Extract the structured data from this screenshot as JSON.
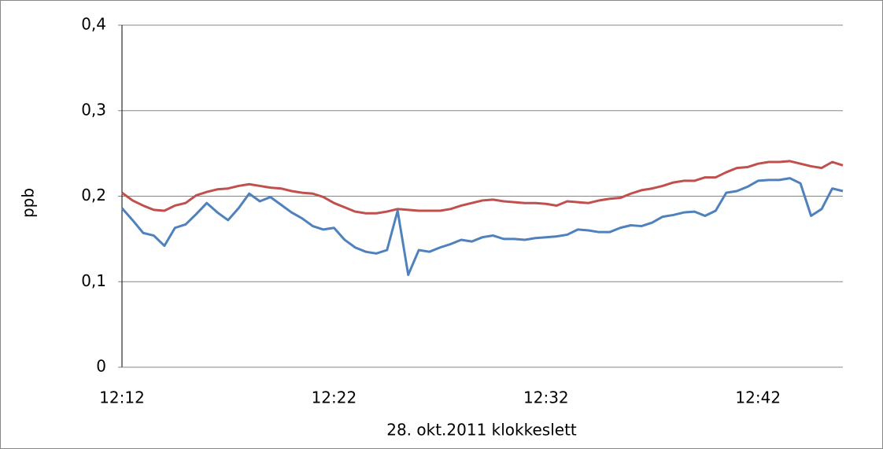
{
  "chart_data": {
    "type": "line",
    "x_label": "28. okt.2011 klokkeslett",
    "y_label": "ppb",
    "categories": [
      "12:12",
      null,
      null,
      null,
      null,
      null,
      null,
      null,
      null,
      null,
      null,
      null,
      null,
      null,
      null,
      null,
      null,
      null,
      null,
      null,
      "12:22",
      null,
      null,
      null,
      null,
      null,
      null,
      null,
      null,
      null,
      null,
      null,
      null,
      null,
      null,
      null,
      null,
      null,
      null,
      null,
      "12:32",
      null,
      null,
      null,
      null,
      null,
      null,
      null,
      null,
      null,
      null,
      null,
      null,
      null,
      null,
      null,
      null,
      null,
      null,
      null,
      "12:42",
      null,
      null,
      null,
      null,
      null,
      null,
      null,
      null
    ],
    "series": [
      {
        "color": "#c0504d",
        "values": [
          0.204,
          0.195,
          0.189,
          0.184,
          0.183,
          0.189,
          0.192,
          0.201,
          0.205,
          0.208,
          0.209,
          0.212,
          0.214,
          0.212,
          0.21,
          0.209,
          0.206,
          0.204,
          0.203,
          0.199,
          0.192,
          0.187,
          0.182,
          0.18,
          0.18,
          0.182,
          0.185,
          0.184,
          0.183,
          0.183,
          0.183,
          0.185,
          0.189,
          0.192,
          0.195,
          0.196,
          0.194,
          0.193,
          0.192,
          0.192,
          0.191,
          0.189,
          0.194,
          0.193,
          0.192,
          0.195,
          0.197,
          0.198,
          0.203,
          0.207,
          0.209,
          0.212,
          0.216,
          0.218,
          0.218,
          0.222,
          0.222,
          0.228,
          0.233,
          0.234,
          0.238,
          0.24,
          0.24,
          0.241,
          0.238,
          0.235,
          0.233,
          0.24,
          0.236
        ]
      },
      {
        "color": "#4f81bd",
        "values": [
          0.186,
          0.172,
          0.157,
          0.154,
          0.142,
          0.163,
          0.167,
          0.179,
          0.192,
          0.181,
          0.172,
          0.186,
          0.203,
          0.194,
          0.199,
          0.19,
          0.181,
          0.174,
          0.165,
          0.161,
          0.163,
          0.149,
          0.14,
          0.135,
          0.133,
          0.137,
          0.183,
          0.108,
          0.137,
          0.135,
          0.14,
          0.144,
          0.149,
          0.147,
          0.152,
          0.154,
          0.15,
          0.15,
          0.149,
          0.151,
          0.152,
          0.153,
          0.155,
          0.161,
          0.16,
          0.158,
          0.158,
          0.163,
          0.166,
          0.165,
          0.169,
          0.176,
          0.178,
          0.181,
          0.182,
          0.177,
          0.183,
          0.204,
          0.206,
          0.211,
          0.218,
          0.219,
          0.219,
          0.221,
          0.215,
          0.177,
          0.185,
          0.209,
          0.206
        ]
      }
    ],
    "ylim": [
      0,
      0.4
    ],
    "yticks": [
      0,
      {
        "value": 0.1,
        "label": "0,1"
      },
      {
        "value": 0.2,
        "label": "0,2"
      },
      {
        "value": 0.3,
        "label": "0,3"
      },
      {
        "value": 0.4,
        "label": "0,4"
      }
    ],
    "grid": true
  }
}
